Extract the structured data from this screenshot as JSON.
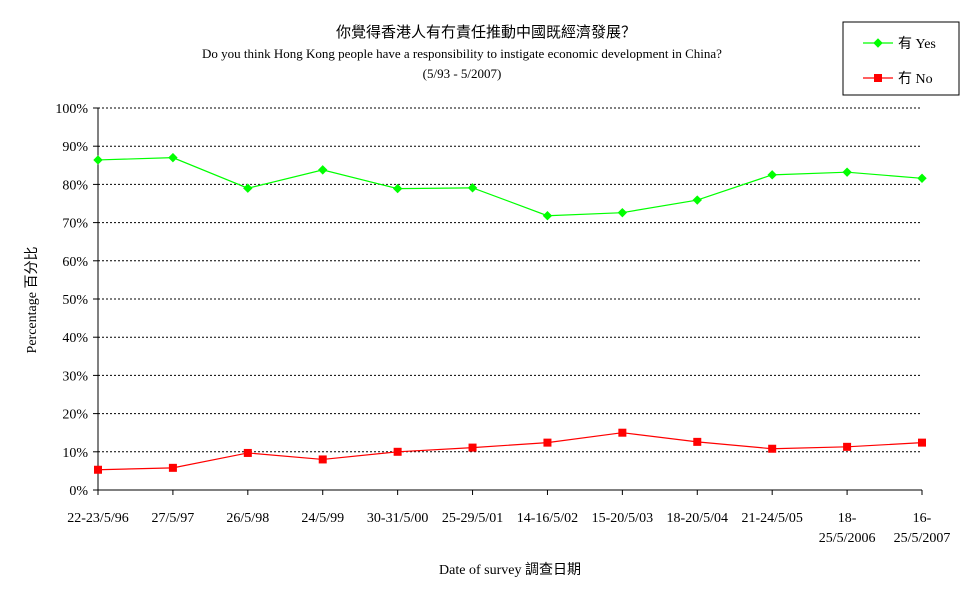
{
  "chart_data": {
    "type": "line",
    "title": "你覺得香港人有冇責任推動中國既經濟發展？",
    "subtitle": "Do you think Hong Kong people have a responsibility to instigate economic development in China?",
    "subtitle2": "(5/93 - 5/2007)",
    "xlabel": "Date of survey  調查日期",
    "ylabel": "Percentage  百分比",
    "ylim": [
      0,
      100
    ],
    "yticks": [
      "0%",
      "10%",
      "20%",
      "30%",
      "40%",
      "50%",
      "60%",
      "70%",
      "80%",
      "90%",
      "100%"
    ],
    "grid": true,
    "legend_position": "top-right",
    "categories": [
      [
        "22-23/5/96"
      ],
      [
        "27/5/97"
      ],
      [
        "26/5/98"
      ],
      [
        "24/5/99"
      ],
      [
        "30-31/5/00"
      ],
      [
        "25-29/5/01"
      ],
      [
        "14-16/5/02"
      ],
      [
        "15-20/5/03"
      ],
      [
        "18-20/5/04"
      ],
      [
        "21-24/5/05"
      ],
      [
        "18-",
        "25/5/2006"
      ],
      [
        "16-",
        "25/5/2007"
      ]
    ],
    "series": [
      {
        "name": "有 Yes",
        "color": "#00ff00",
        "marker": "diamond",
        "values": [
          86.4,
          87.0,
          79.0,
          83.8,
          78.9,
          79.1,
          71.8,
          72.6,
          75.9,
          82.5,
          83.2,
          81.6
        ]
      },
      {
        "name": "冇 No",
        "color": "#ff0000",
        "marker": "square",
        "values": [
          5.3,
          5.8,
          9.7,
          8.0,
          10.0,
          11.1,
          12.4,
          15.0,
          12.6,
          10.8,
          11.3,
          12.4
        ]
      }
    ]
  }
}
